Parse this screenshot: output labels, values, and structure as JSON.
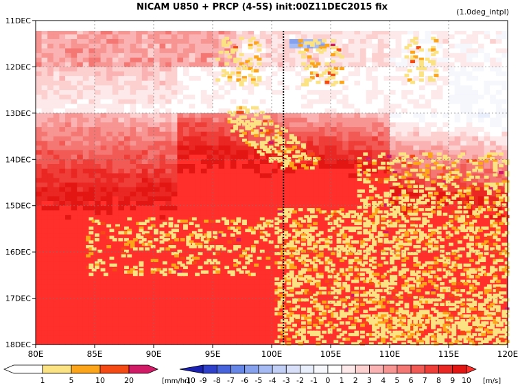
{
  "title": "NICAM  U850 + PRCP (4-5S) init:00Z11DEC2015 fix",
  "subtitle": "(1.0deg_intpl)",
  "chart_data": {
    "type": "heatmap",
    "title": "NICAM  U850 + PRCP (4-5S) init:00Z11DEC2015 fix",
    "subtitle": "(1.0deg_intpl)",
    "x_axis": {
      "ticks": [
        "80E",
        "85E",
        "90E",
        "95E",
        "100E",
        "105E",
        "110E",
        "115E",
        "120E"
      ],
      "range": [
        80,
        120
      ]
    },
    "y_axis": {
      "ticks": [
        "11DEC",
        "12DEC",
        "13DEC",
        "14DEC",
        "15DEC",
        "16DEC",
        "17DEC",
        "18DEC"
      ],
      "range": [
        "11DEC",
        "18DEC"
      ],
      "direction": "time increases downward"
    },
    "reference_line": {
      "lon": 101,
      "style": "dotted"
    },
    "fields": [
      {
        "name": "U850",
        "unit": "[m/s]",
        "display": "shaded",
        "range": [
          -10,
          10
        ]
      },
      {
        "name": "PRCP",
        "unit": "[mm/hr]",
        "display": "shaded overlay",
        "thresholds": [
          1,
          5,
          10,
          20
        ]
      }
    ],
    "u850_pattern": [
      {
        "period": "11DEC-12DEC",
        "description": "weak westerlies 1-4 m/s west of 98E; light easterlies near 103E and 116-120E"
      },
      {
        "period": "12DEC-13DEC",
        "description": "weak easterlies to near zero across domain"
      },
      {
        "period": "13DEC-15DEC",
        "description": "westerlies strengthening 5-10 m/s, strongest 95-108E"
      },
      {
        "period": "15DEC-18DEC",
        "description": "strong westerlies 8-10+ m/s across nearly all longitudes"
      }
    ],
    "prcp_pattern": "scattered convective precipitation 1-20 mm/hr propagating eastward from 100E after 13DEC",
    "legends": [
      {
        "name": "PRCP",
        "unit": "[mm/hr]",
        "labels": [
          "1",
          "5",
          "10",
          "20"
        ],
        "colors": [
          "#ffffff",
          "#fbe282",
          "#fca41a",
          "#f54a14",
          "#d21b66"
        ]
      },
      {
        "name": "U850",
        "unit": "[m/s]",
        "labels": [
          "-10",
          "-9",
          "-8",
          "-7",
          "-6",
          "-5",
          "-4",
          "-3",
          "-2",
          "-1",
          "0",
          "1",
          "2",
          "3",
          "4",
          "5",
          "6",
          "7",
          "8",
          "9",
          "10"
        ],
        "colors": [
          "#1b22b2",
          "#2f41cb",
          "#4864dd",
          "#6787e8",
          "#86a2ef",
          "#a6bbf3",
          "#c1cff6",
          "#d8e0f9",
          "#e8eefb",
          "#f5f7fd",
          "#ffffff",
          "#fde9e9",
          "#fcd0cf",
          "#fab3b2",
          "#f79593",
          "#f57774",
          "#f25a56",
          "#ef3d38",
          "#ea2722",
          "#e31613",
          "#ff2f2b"
        ]
      }
    ]
  }
}
